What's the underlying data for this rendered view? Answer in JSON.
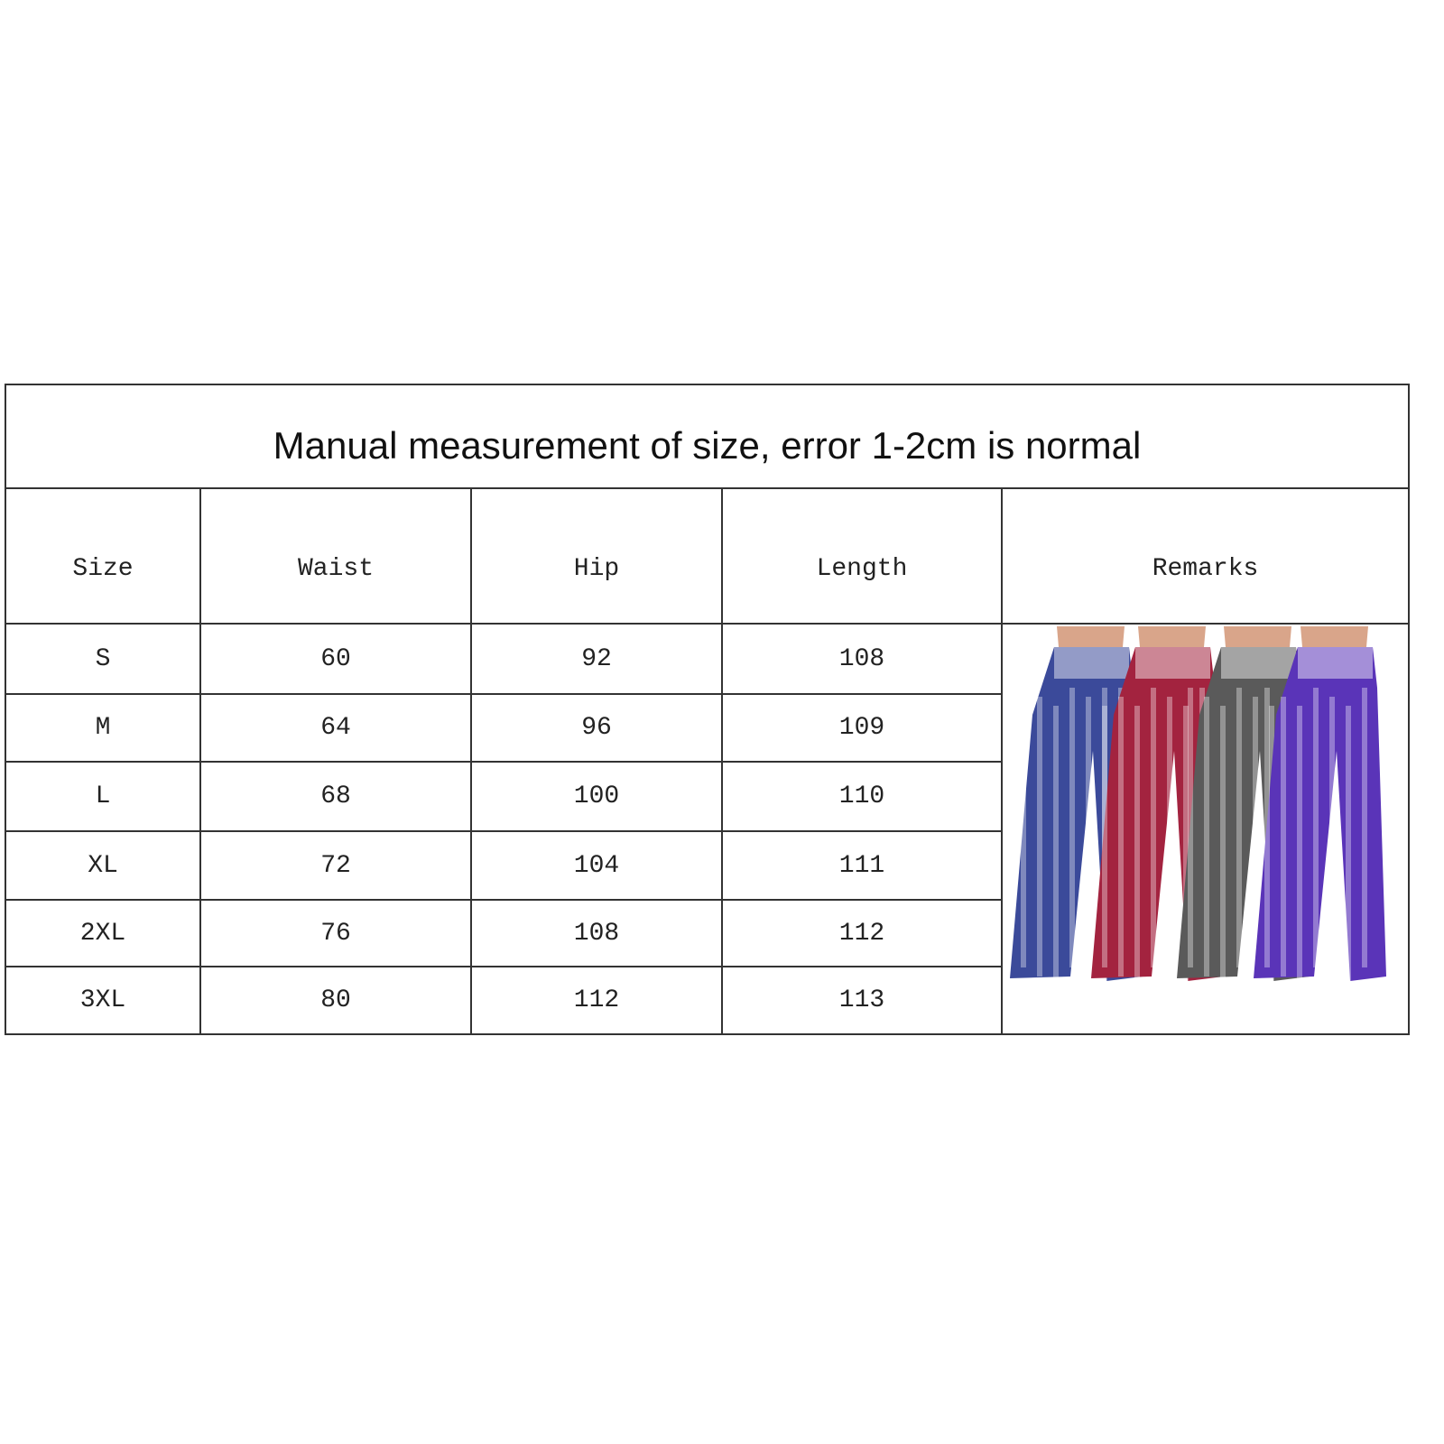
{
  "title": "Manual measurement of size, error 1-2cm is normal",
  "headers": [
    "Size",
    "Waist",
    "Hip",
    "Length",
    "Remarks"
  ],
  "rows": [
    [
      "S",
      "60",
      "92",
      "108"
    ],
    [
      "M",
      "64",
      "96",
      "109"
    ],
    [
      "L",
      "68",
      "100",
      "110"
    ],
    [
      "XL",
      "72",
      "104",
      "111"
    ],
    [
      "2XL",
      "76",
      "108",
      "112"
    ],
    [
      "3XL",
      "80",
      "112",
      "113"
    ]
  ],
  "remarks_image": {
    "description_icon": "tie-dye-pants-photo",
    "colors": [
      "#3b4a9a",
      "#a3233f",
      "#5a5a5a",
      "#5a34b8"
    ]
  }
}
